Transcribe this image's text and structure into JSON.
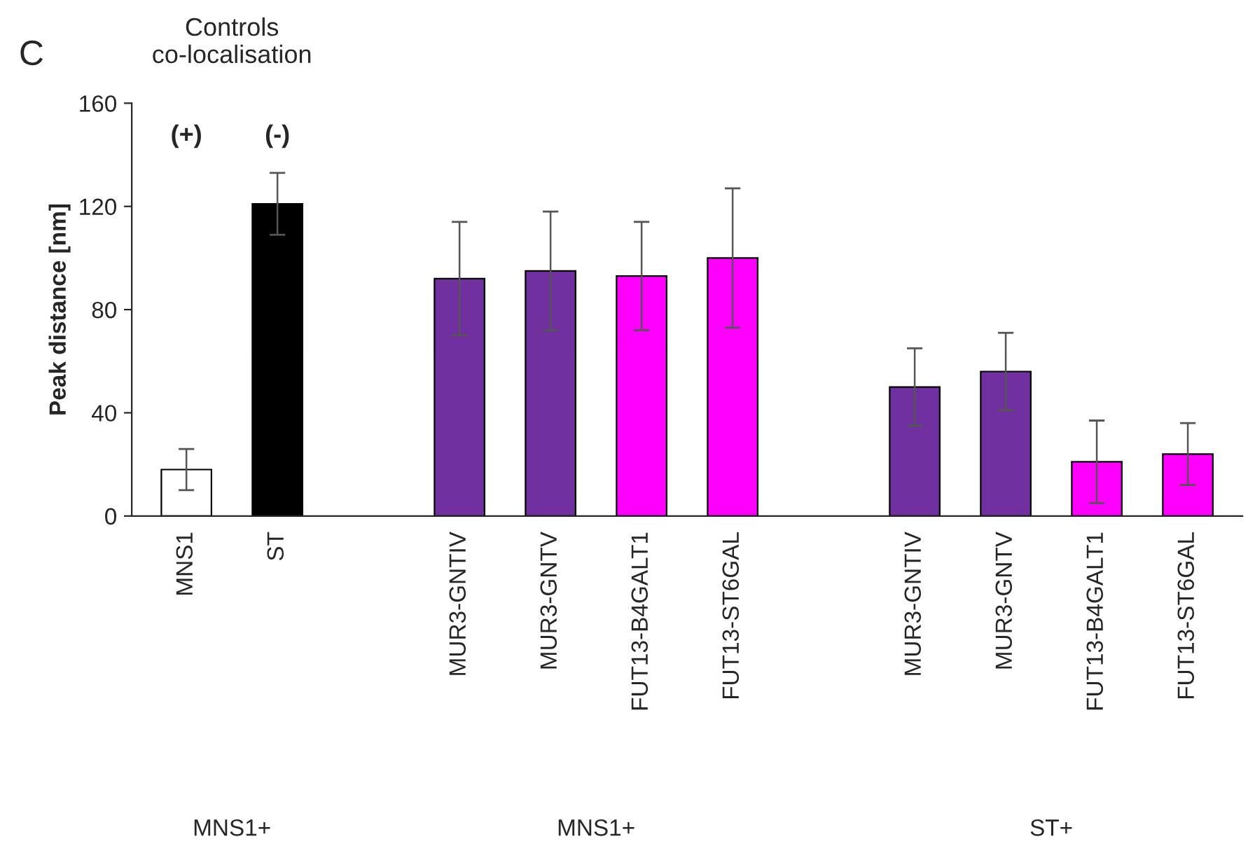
{
  "chart_data": {
    "type": "bar",
    "ylabel": "Peak distance [nm]",
    "categories": [
      "MNS1",
      "ST",
      null,
      "MUR3-GNTIV",
      "MUR3-GNTV",
      "FUT13-B4GALT1",
      "FUT13-ST6GAL",
      null,
      "MUR3-GNTIV",
      "MUR3-GNTV",
      "FUT13-B4GALT1",
      "FUT13-ST6GAL"
    ],
    "values": [
      18,
      121,
      null,
      92,
      95,
      93,
      100,
      null,
      50,
      56,
      21,
      24
    ],
    "errors": [
      8,
      12,
      null,
      22,
      23,
      21,
      27,
      null,
      15,
      15,
      16,
      12
    ],
    "colors": [
      "#ffffff",
      "#000000",
      null,
      "#7030a0",
      "#7030a0",
      "#ff00ff",
      "#ff00ff",
      null,
      "#7030a0",
      "#7030a0",
      "#ff00ff",
      "#ff00ff"
    ],
    "ylim": [
      0,
      160
    ],
    "yticks": [
      0,
      40,
      80,
      120,
      160
    ],
    "grid": false,
    "legend": false,
    "annotations": [
      "C",
      "Controls\nco-localisation",
      "(+)",
      "(-)",
      "MNS1+",
      "MNS1+",
      "ST+"
    ]
  }
}
